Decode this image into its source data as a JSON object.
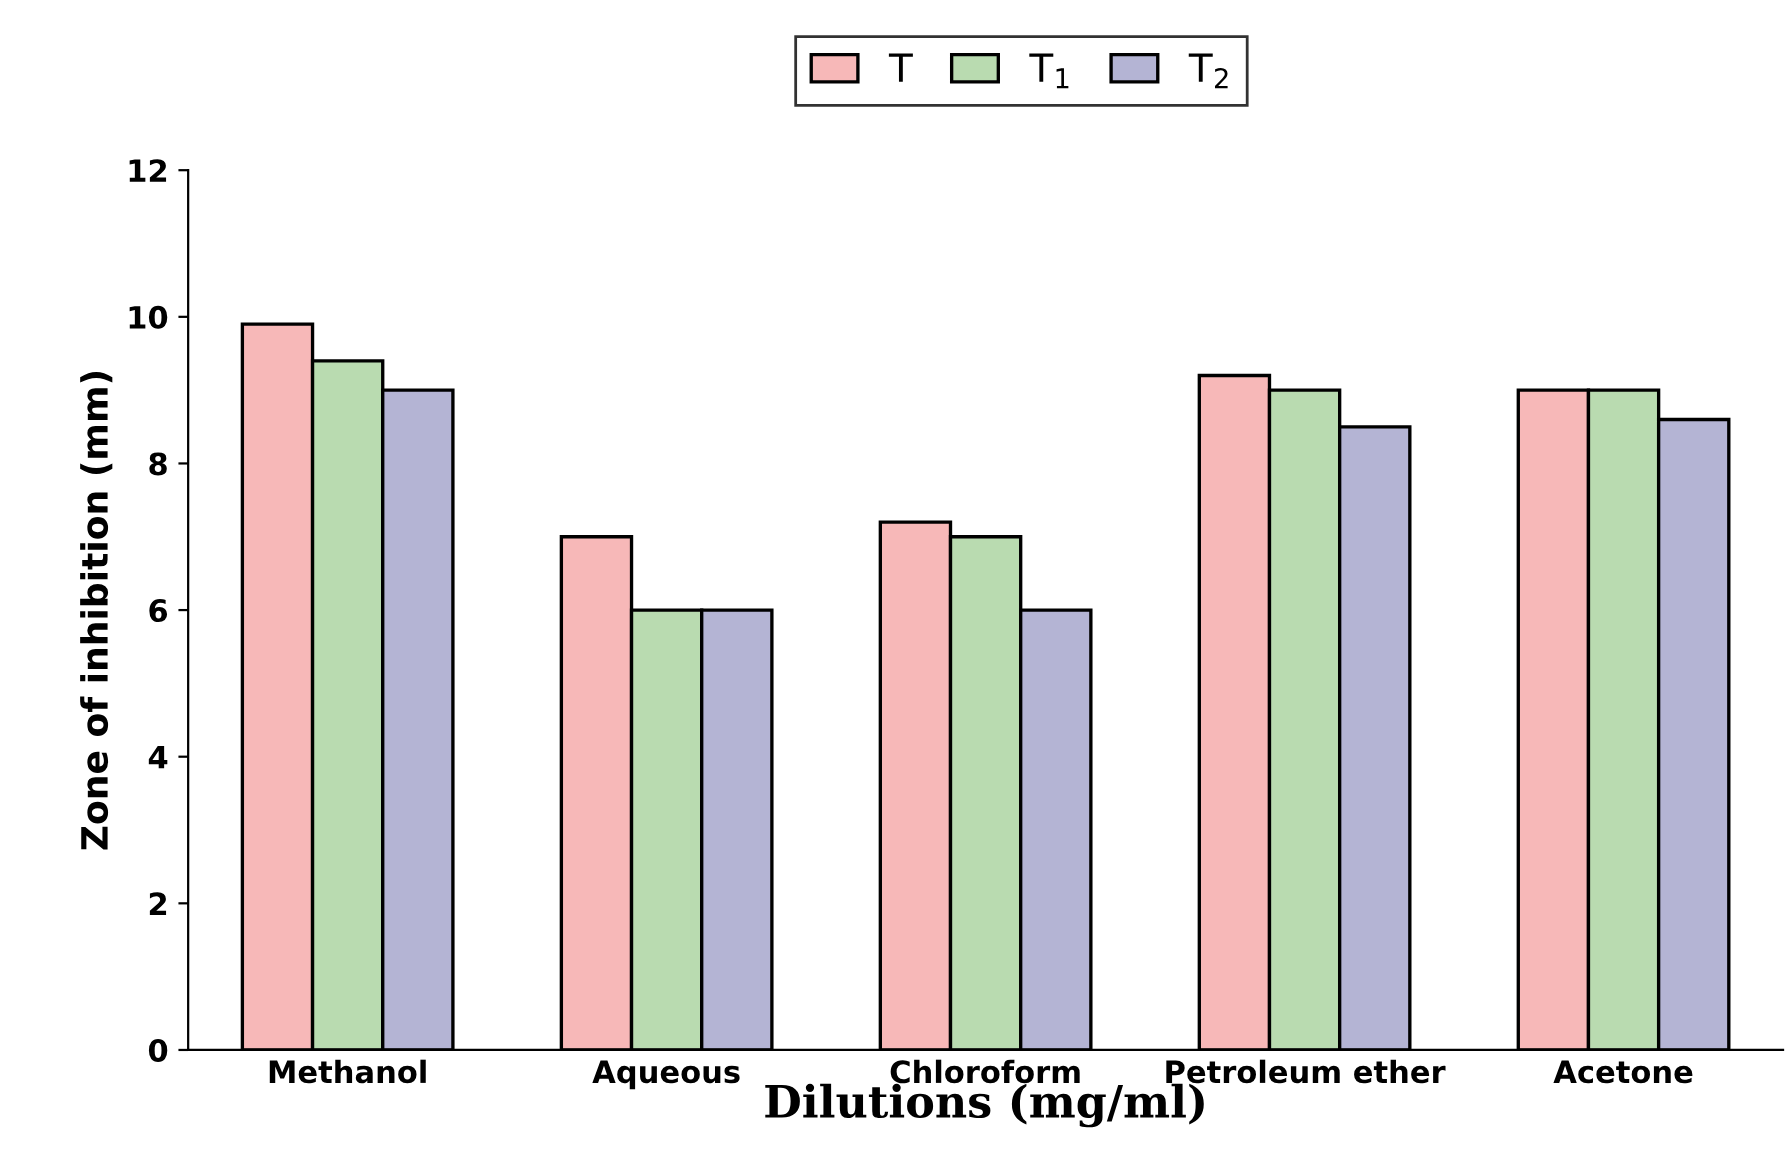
{
  "chart_data": {
    "type": "bar",
    "categories": [
      "Methanol",
      "Aqueous",
      "Chloroform",
      "Petroleum ether",
      "Acetone"
    ],
    "series": [
      {
        "name": "T",
        "color": "#f7b8b8",
        "values": [
          9.9,
          7.0,
          7.2,
          9.2,
          9.0
        ]
      },
      {
        "name": "T$_{1}$",
        "color": "#b9dbb0",
        "values": [
          9.4,
          6.0,
          7.0,
          9.0,
          9.0
        ]
      },
      {
        "name": "T$_{2}$",
        "color": "#b4b4d4",
        "values": [
          9.0,
          6.0,
          6.0,
          8.5,
          8.6
        ]
      }
    ],
    "xlabel": "Dilutions (mg/ml)",
    "ylabel": "Zone of inhibition (mm)",
    "ylim": [
      0,
      12
    ],
    "yticks": [
      0,
      2,
      4,
      6,
      8,
      10,
      12
    ],
    "legend": "top",
    "grid": false
  }
}
